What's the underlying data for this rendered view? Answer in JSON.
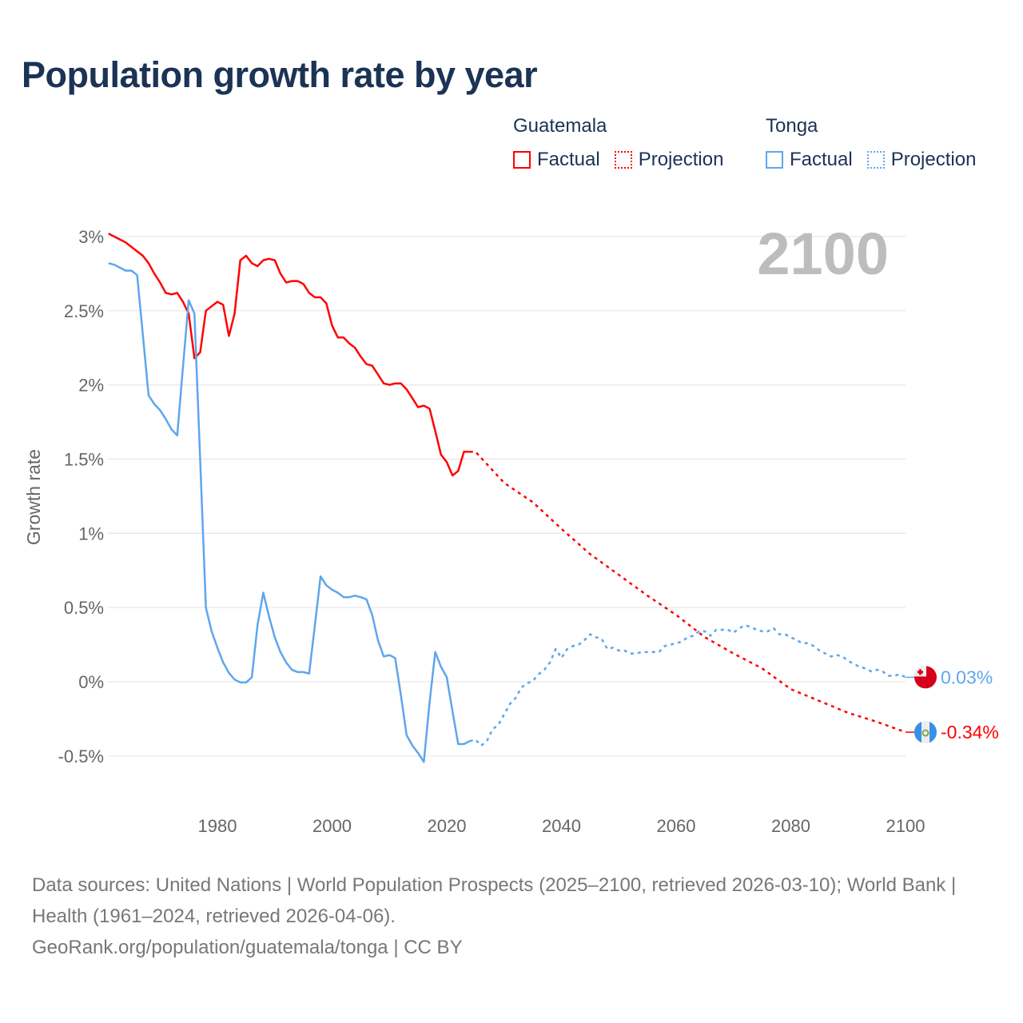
{
  "title": "Population growth rate by year",
  "legend": [
    {
      "country": "Guatemala",
      "factual_label": "Factual",
      "projection_label": "Projection",
      "color": "#ff0000"
    },
    {
      "country": "Tonga",
      "factual_label": "Factual",
      "projection_label": "Projection",
      "color": "#5ea6ec"
    }
  ],
  "current_year": "2100",
  "footer": {
    "sources": "Data sources: United Nations | World Population Prospects (2025–2100, retrieved 2026-03-10); World Bank | Health (1961–2024, retrieved 2026-04-06).",
    "credit": "GeoRank.org/population/guatemala/tonga | CC BY"
  },
  "chart_data": {
    "type": "line",
    "title": "Population growth rate by year",
    "xlabel": "",
    "ylabel": "Growth rate",
    "xlim": [
      1961,
      2100
    ],
    "ylim": [
      -0.7,
      3.1
    ],
    "x_ticks": [
      1980,
      2000,
      2020,
      2040,
      2060,
      2080,
      2100
    ],
    "y_ticks": [
      -0.5,
      0,
      0.5,
      1,
      1.5,
      2,
      2.5,
      3
    ],
    "y_tick_labels": [
      "-0.5%",
      "0%",
      "0.5%",
      "1%",
      "1.5%",
      "2%",
      "2.5%",
      "3%"
    ],
    "grid": true,
    "legend_position": "top-right",
    "series": [
      {
        "name": "Guatemala",
        "kind": "factual",
        "color": "#ff0000",
        "start_year": 1961,
        "values": [
          3.02,
          3.0,
          2.98,
          2.96,
          2.93,
          2.9,
          2.87,
          2.82,
          2.75,
          2.69,
          2.62,
          2.61,
          2.62,
          2.56,
          2.48,
          2.18,
          2.22,
          2.5,
          2.53,
          2.56,
          2.54,
          2.33,
          2.48,
          2.84,
          2.87,
          2.82,
          2.8,
          2.84,
          2.85,
          2.84,
          2.75,
          2.69,
          2.7,
          2.7,
          2.68,
          2.62,
          2.59,
          2.59,
          2.55,
          2.4,
          2.32,
          2.32,
          2.28,
          2.25,
          2.19,
          2.14,
          2.13,
          2.07,
          2.01,
          2.0,
          2.01,
          2.01,
          1.97,
          1.91,
          1.85,
          1.86,
          1.84,
          1.69,
          1.53,
          1.48,
          1.39,
          1.42,
          1.55,
          1.55
        ]
      },
      {
        "name": "Guatemala",
        "kind": "projection",
        "color": "#ff0000",
        "x": [
          2024,
          2025,
          2030,
          2035,
          2040,
          2045,
          2050,
          2055,
          2060,
          2065,
          2070,
          2075,
          2080,
          2085,
          2090,
          2095,
          2100
        ],
        "values": [
          1.55,
          1.55,
          1.34,
          1.21,
          1.03,
          0.86,
          0.72,
          0.58,
          0.45,
          0.3,
          0.19,
          0.09,
          -0.05,
          -0.13,
          -0.21,
          -0.27,
          -0.34
        ]
      },
      {
        "name": "Tonga",
        "kind": "factual",
        "color": "#5ea6ec",
        "start_year": 1961,
        "values": [
          2.82,
          2.81,
          2.79,
          2.77,
          2.77,
          2.74,
          2.34,
          1.93,
          1.87,
          1.83,
          1.77,
          1.7,
          1.66,
          2.12,
          2.57,
          2.48,
          1.49,
          0.5,
          0.34,
          0.23,
          0.13,
          0.06,
          0.015,
          -0.005,
          -0.005,
          0.03,
          0.38,
          0.6,
          0.44,
          0.3,
          0.2,
          0.13,
          0.08,
          0.065,
          0.065,
          0.055,
          0.38,
          0.71,
          0.65,
          0.62,
          0.6,
          0.57,
          0.57,
          0.58,
          0.57,
          0.555,
          0.45,
          0.28,
          0.17,
          0.18,
          0.16,
          -0.09,
          -0.36,
          -0.43,
          -0.48,
          -0.54,
          -0.14,
          0.2,
          0.1,
          0.03,
          -0.2,
          -0.42,
          -0.42,
          -0.4
        ]
      },
      {
        "name": "Tonga",
        "kind": "projection",
        "color": "#5ea6ec",
        "start_year": 2024,
        "values": [
          -0.4,
          -0.39,
          -0.43,
          -0.4,
          -0.32,
          -0.29,
          -0.22,
          -0.15,
          -0.11,
          -0.04,
          -0.01,
          0.005,
          0.05,
          0.08,
          0.13,
          0.22,
          0.16,
          0.22,
          0.24,
          0.25,
          0.28,
          0.32,
          0.3,
          0.29,
          0.22,
          0.23,
          0.21,
          0.21,
          0.19,
          0.19,
          0.2,
          0.2,
          0.2,
          0.2,
          0.24,
          0.25,
          0.26,
          0.27,
          0.3,
          0.31,
          0.34,
          0.34,
          0.31,
          0.35,
          0.35,
          0.35,
          0.33,
          0.36,
          0.38,
          0.37,
          0.35,
          0.34,
          0.34,
          0.36,
          0.32,
          0.32,
          0.3,
          0.28,
          0.26,
          0.26,
          0.24,
          0.21,
          0.19,
          0.17,
          0.18,
          0.17,
          0.14,
          0.12,
          0.1,
          0.09,
          0.07,
          0.08,
          0.07,
          0.04,
          0.04,
          0.05,
          0.03
        ]
      }
    ],
    "end_labels": [
      {
        "country": "Tonga",
        "text": "0.03%",
        "value": 0.03,
        "color": "#5ea6ec"
      },
      {
        "country": "Guatemala",
        "text": "-0.34%",
        "value": -0.34,
        "color": "#ff0000"
      }
    ]
  }
}
